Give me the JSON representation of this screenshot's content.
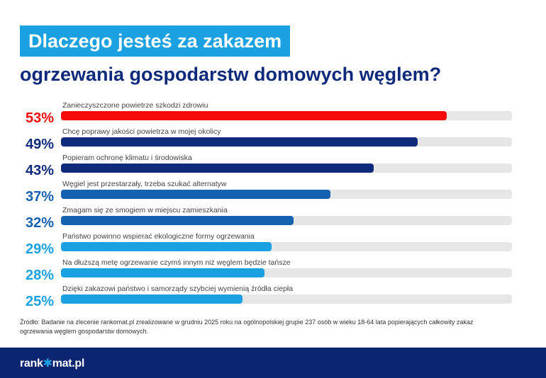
{
  "title_line1": "Dlaczego jesteś za zakazem",
  "title_line2": "ogrzewania gospodarstw domowych węglem?",
  "chart_data": {
    "type": "bar",
    "orientation": "horizontal",
    "xlim": [
      0,
      62
    ],
    "categories": [
      "Zanieczyszczone powietrze szkodzi zdrowiu",
      "Chcę poprawy jakości powietrza w mojej okolicy",
      "Popieram ochronę klimatu i środowiska",
      "Węgiel jest przestarzały, trzeba szukać alternatyw",
      "Zmagam się ze smogiem w miejscu zamieszkania",
      "Państwo powinno wspierać ekologiczne formy ogrzewania",
      "Na dłuższą metę ogrzewanie czymś innym niż węglem będzie tańsze",
      "Dzięki zakazowi państwo i samorządy szybciej wymienią źródła ciepła"
    ],
    "values": [
      53,
      49,
      43,
      37,
      32,
      29,
      28,
      25
    ],
    "value_labels": [
      "53%",
      "49%",
      "43%",
      "37%",
      "32%",
      "29%",
      "28%",
      "25%"
    ],
    "colors": [
      "#f50a0a",
      "#0f2a7a",
      "#0f2a7a",
      "#1560b0",
      "#1560b0",
      "#1ba1e2",
      "#1ba1e2",
      "#1ba1e2"
    ],
    "track_color": "#e6e6e6"
  },
  "source": "Źródło: Badanie na zlecenie rankomat.pl zrealizowane w grudniu 2025 roku na ogólnopolskiej grupie 237 osób w wieku 18-64 lata popierających całkowity zakaz ogrzewania węglem gospodarstw domowych.",
  "logo": {
    "part1": "rank",
    "star": "✱",
    "part2": "mat.pl"
  }
}
